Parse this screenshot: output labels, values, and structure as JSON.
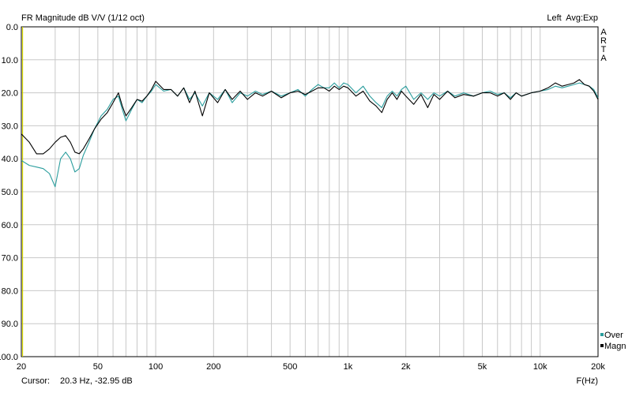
{
  "title": "FR Magnitude dB V/V (1/12 oct)",
  "right_header": "Left  Avg:Exp",
  "brand_letters": [
    "A",
    "R",
    "T",
    "A"
  ],
  "cursor": {
    "label": "Cursor:",
    "value": "20.3 Hz, -32.95 dB"
  },
  "x_unit": "F(Hz)",
  "colors": {
    "over": "#2a9d9d",
    "magn": "#000000",
    "grid": "#c8c8c8",
    "cursor_line": "#d8d800"
  },
  "chart_data": {
    "type": "line",
    "title": "FR Magnitude dB V/V (1/12 oct)",
    "xlabel": "F(Hz)",
    "ylabel": "",
    "x_scale": "log",
    "xlim": [
      20,
      20000
    ],
    "ylim": [
      0,
      100
    ],
    "y_inverted": true,
    "grid": true,
    "legend_position": "bottom-right",
    "x_ticks": [
      {
        "value": 20,
        "label": "20"
      },
      {
        "value": 50,
        "label": "50"
      },
      {
        "value": 100,
        "label": "100"
      },
      {
        "value": 200,
        "label": "200"
      },
      {
        "value": 500,
        "label": "500"
      },
      {
        "value": 1000,
        "label": "1k"
      },
      {
        "value": 2000,
        "label": "2k"
      },
      {
        "value": 5000,
        "label": "5k"
      },
      {
        "value": 10000,
        "label": "10k"
      },
      {
        "value": 20000,
        "label": "20k"
      }
    ],
    "y_ticks": [
      "0.0",
      "10.0",
      "20.0",
      "30.0",
      "40.0",
      "50.0",
      "60.0",
      "70.0",
      "80.0",
      "90.0",
      "100.0"
    ],
    "series": [
      {
        "name": "Over",
        "color": "#2a9d9d",
        "x": [
          20,
          22,
          24,
          26,
          28,
          30,
          32,
          34,
          36,
          38,
          40,
          42,
          45,
          48,
          52,
          56,
          60,
          64,
          67,
          70,
          75,
          80,
          85,
          90,
          95,
          100,
          110,
          120,
          130,
          140,
          150,
          160,
          175,
          190,
          210,
          230,
          250,
          275,
          300,
          330,
          360,
          400,
          450,
          500,
          550,
          600,
          650,
          700,
          750,
          800,
          850,
          900,
          950,
          1000,
          1100,
          1200,
          1300,
          1400,
          1500,
          1600,
          1700,
          1800,
          1900,
          2000,
          2200,
          2400,
          2600,
          2800,
          3000,
          3300,
          3600,
          4000,
          4500,
          5000,
          5500,
          6000,
          6500,
          7000,
          7500,
          8000,
          9000,
          10000,
          11000,
          12000,
          13000,
          14000,
          15000,
          16000,
          17000,
          18000,
          19000,
          20000
        ],
        "y": [
          40.5,
          42,
          42.5,
          43,
          44.5,
          48.5,
          40,
          38,
          40,
          44,
          43,
          39,
          35,
          31,
          27,
          25,
          22,
          21,
          25,
          28.5,
          25,
          22,
          23,
          21,
          19.5,
          17.5,
          19.5,
          19,
          21,
          18.5,
          22,
          20,
          24,
          20,
          22,
          19,
          23,
          20,
          21,
          19.5,
          20.5,
          19.5,
          21,
          20,
          19,
          21,
          19,
          17.5,
          18.5,
          18.5,
          17,
          18.5,
          17,
          17.5,
          20,
          18,
          21,
          23,
          24.5,
          21,
          19.5,
          21,
          19,
          18,
          22,
          20,
          22,
          20,
          21,
          19.5,
          21,
          20,
          21,
          20,
          19.5,
          20.5,
          20,
          21.5,
          20,
          21,
          20,
          19.5,
          19,
          18,
          18.5,
          18,
          17.5,
          17,
          17.5,
          18,
          19,
          21.5
        ]
      },
      {
        "name": "Magn",
        "color": "#000000",
        "x": [
          20,
          22,
          24,
          26,
          28,
          30,
          32,
          34,
          36,
          38,
          40,
          42,
          45,
          48,
          52,
          56,
          60,
          64,
          67,
          70,
          75,
          80,
          85,
          90,
          95,
          100,
          110,
          120,
          130,
          140,
          150,
          160,
          175,
          190,
          210,
          230,
          250,
          275,
          300,
          330,
          360,
          400,
          450,
          500,
          550,
          600,
          650,
          700,
          750,
          800,
          850,
          900,
          950,
          1000,
          1100,
          1200,
          1300,
          1400,
          1500,
          1600,
          1700,
          1800,
          1900,
          2000,
          2200,
          2400,
          2600,
          2800,
          3000,
          3300,
          3600,
          4000,
          4500,
          5000,
          5500,
          6000,
          6500,
          7000,
          7500,
          8000,
          9000,
          10000,
          11000,
          12000,
          13000,
          14000,
          15000,
          16000,
          17000,
          18000,
          19000,
          20000
        ],
        "y": [
          32.5,
          35,
          38.5,
          38.5,
          37,
          35,
          33.5,
          33,
          35,
          38,
          38.5,
          37,
          34,
          31,
          28,
          26,
          23,
          20,
          24,
          27,
          24.5,
          22,
          22.5,
          21,
          19,
          16.5,
          19,
          19,
          21,
          18.5,
          23,
          19.5,
          27,
          20,
          23,
          19,
          22,
          19.5,
          22,
          20,
          21,
          19.5,
          21.5,
          20,
          19.5,
          20.5,
          19.5,
          18.5,
          18.5,
          19.5,
          18,
          19,
          18,
          18.5,
          21,
          19.5,
          22.5,
          24,
          26,
          22,
          20,
          22,
          19.5,
          21,
          23.5,
          20.5,
          24.5,
          20.5,
          22,
          19.5,
          21.5,
          20.5,
          21,
          20,
          20,
          21,
          20,
          22,
          20,
          21,
          20,
          19.5,
          18.5,
          17,
          18,
          17.5,
          17,
          16,
          17.5,
          18,
          19.5,
          22
        ]
      }
    ],
    "cursor_marker": {
      "x": 20.3
    }
  }
}
